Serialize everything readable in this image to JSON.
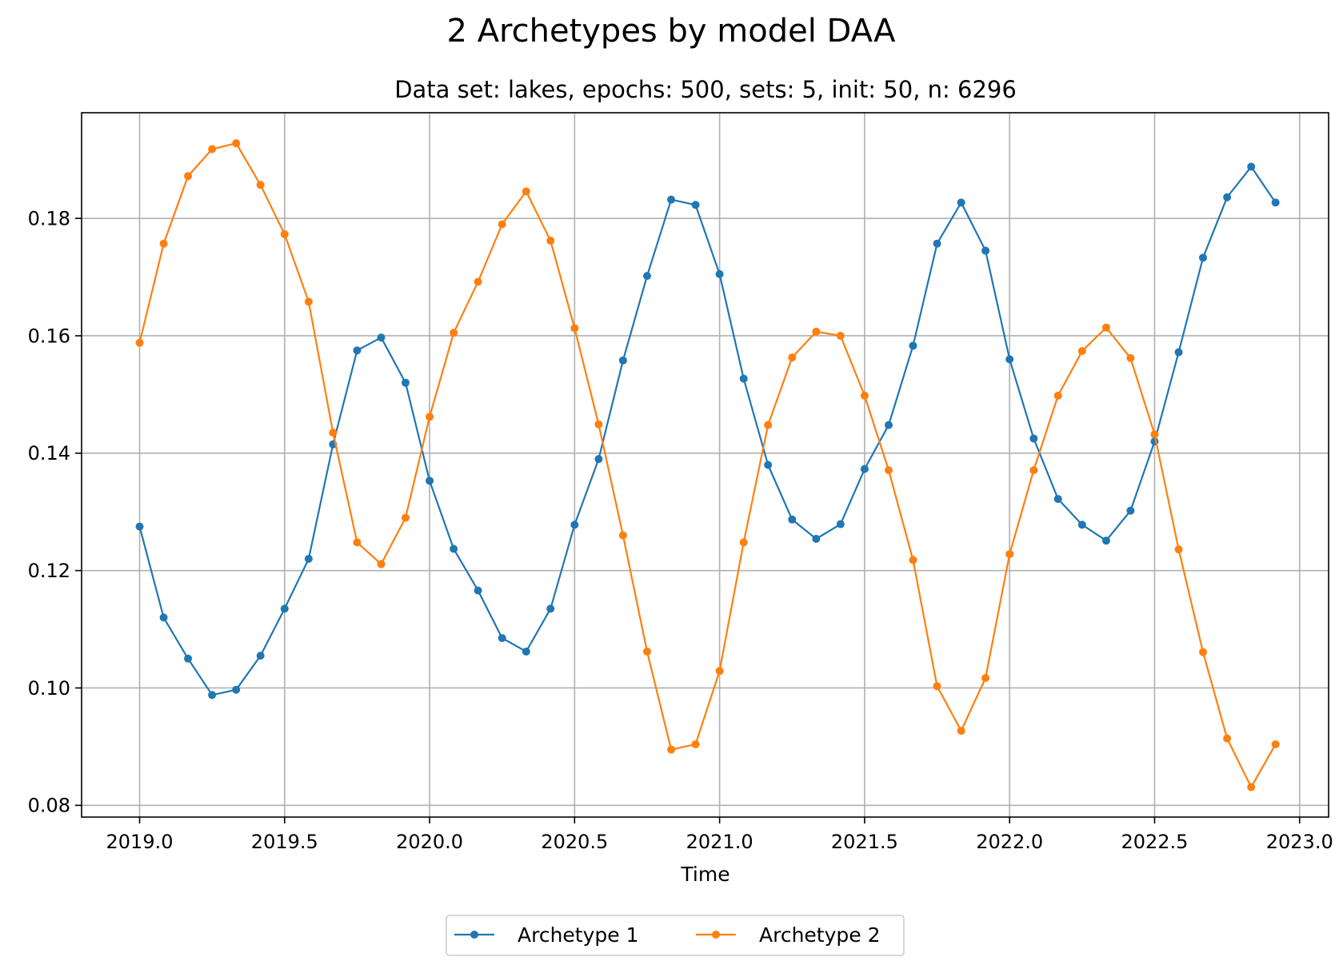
{
  "chart_data": {
    "type": "line",
    "title": "2 Archetypes by model DAA",
    "subtitle": "Data set: lakes, epochs: 500, sets: 5, init: 50, n: 6296",
    "xlabel": "Time",
    "ylabel": "",
    "xlim": [
      2018.8,
      2023.1
    ],
    "ylim": [
      0.078,
      0.198
    ],
    "grid": true,
    "legend_position": "bottom-center",
    "x_ticks": [
      "2019.0",
      "2019.5",
      "2020.0",
      "2020.5",
      "2021.0",
      "2021.5",
      "2022.0",
      "2022.5",
      "2023.0"
    ],
    "x_tick_values": [
      2019.0,
      2019.5,
      2020.0,
      2020.5,
      2021.0,
      2021.5,
      2022.0,
      2022.5,
      2023.0
    ],
    "y_ticks": [
      "0.08",
      "0.10",
      "0.12",
      "0.14",
      "0.16",
      "0.18"
    ],
    "y_tick_values": [
      0.08,
      0.1,
      0.12,
      0.14,
      0.16,
      0.18
    ],
    "x": [
      2019.0,
      2019.083,
      2019.167,
      2019.25,
      2019.333,
      2019.417,
      2019.5,
      2019.583,
      2019.667,
      2019.75,
      2019.833,
      2019.917,
      2020.0,
      2020.083,
      2020.167,
      2020.25,
      2020.333,
      2020.417,
      2020.5,
      2020.583,
      2020.667,
      2020.75,
      2020.833,
      2020.917,
      2021.0,
      2021.083,
      2021.167,
      2021.25,
      2021.333,
      2021.417,
      2021.5,
      2021.583,
      2021.667,
      2021.75,
      2021.833,
      2021.917,
      2022.0,
      2022.083,
      2022.167,
      2022.25,
      2022.333,
      2022.417,
      2022.5,
      2022.583,
      2022.667,
      2022.75,
      2022.833,
      2022.917
    ],
    "series": [
      {
        "name": "Archetype 1",
        "color": "#1f77b4",
        "values": [
          0.1275,
          0.112,
          0.105,
          0.0988,
          0.0997,
          0.1055,
          0.1135,
          0.122,
          0.1415,
          0.1575,
          0.1597,
          0.152,
          0.1353,
          0.1237,
          0.1166,
          0.1085,
          0.1062,
          0.1135,
          0.1278,
          0.139,
          0.1558,
          0.1702,
          0.1832,
          0.1823,
          0.1705,
          0.1527,
          0.138,
          0.1287,
          0.1254,
          0.1279,
          0.1373,
          0.1448,
          0.1583,
          0.1757,
          0.1827,
          0.1745,
          0.156,
          0.1425,
          0.1322,
          0.1278,
          0.1251,
          0.1302,
          0.142,
          0.1572,
          0.1733,
          0.1836,
          0.1888,
          0.1827
        ]
      },
      {
        "name": "Archetype 2",
        "color": "#ff7f0e",
        "values": [
          0.1588,
          0.1757,
          0.1872,
          0.1918,
          0.1928,
          0.1857,
          0.1773,
          0.1658,
          0.1435,
          0.1248,
          0.1211,
          0.129,
          0.1462,
          0.1605,
          0.1692,
          0.179,
          0.1846,
          0.1762,
          0.1613,
          0.1449,
          0.126,
          0.1062,
          0.0895,
          0.0904,
          0.1029,
          0.1248,
          0.1448,
          0.1563,
          0.1607,
          0.16,
          0.1498,
          0.1371,
          0.1218,
          0.1003,
          0.0927,
          0.1017,
          0.1228,
          0.1371,
          0.1498,
          0.1574,
          0.1614,
          0.1562,
          0.1432,
          0.1236,
          0.1061,
          0.0914,
          0.0831,
          0.0904
        ]
      }
    ]
  }
}
